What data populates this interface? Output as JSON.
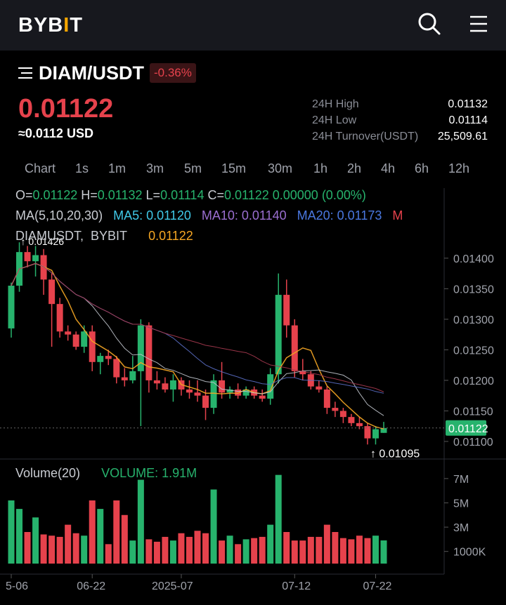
{
  "header": {
    "logo_main": "BYB",
    "logo_i": "I",
    "logo_t": "T",
    "search_icon": "search-icon",
    "menu_icon": "hamburger-menu-icon"
  },
  "market": {
    "pair": "DIAM/USDT",
    "change": "-0.36%",
    "price": "0.01122",
    "price_usd": "≈0.0112 USD"
  },
  "stats": [
    {
      "label": "24H High",
      "value": "0.01132"
    },
    {
      "label": "24H Low",
      "value": "0.01114"
    },
    {
      "label": "24H Turnover(USDT)",
      "value": "25,509.61"
    }
  ],
  "timeframes": [
    "Chart",
    "1s",
    "1m",
    "3m",
    "5m",
    "15m",
    "30m",
    "1h",
    "2h",
    "4h",
    "6h",
    "12h"
  ],
  "ohlc": {
    "o_label": "O=",
    "o": "0.01122",
    "h_label": "H=",
    "h": "0.01132",
    "l_label": "L=",
    "l": "0.01114",
    "c_label": "C=",
    "c": "0.01122",
    "chg": "0.00000 (0.00%)"
  },
  "ma": {
    "title": "MA(5,10,20,30)",
    "ma5": "MA5: 0.01120",
    "ma10": "MA10: 0.01140",
    "ma20": "MA20: 0.01173",
    "ma30": "M"
  },
  "symbol": {
    "name": "DIAMUSDT",
    "exchange": "BYBIT",
    "last": "0.01122"
  },
  "volume": {
    "title": "Volume(20)",
    "value": "VOLUME: 1.91M"
  },
  "colors": {
    "up": "#27b36d",
    "down": "#e6424c",
    "ma5": "#f5a623",
    "ma10": "#c0c4cc",
    "ma20": "#5b6fc7",
    "ma30": "#a83a50"
  },
  "chart_data": {
    "type": "candlestick",
    "price_axis": {
      "ticks": [
        0.014,
        0.0135,
        0.013,
        0.0125,
        0.012,
        0.0115,
        0.011
      ],
      "tick_labels": [
        "0.01400",
        "0.01350",
        "0.01300",
        "0.01250",
        "0.01200",
        "0.01150",
        "0.01100"
      ]
    },
    "volume_axis": {
      "tick_labels": [
        "7M",
        "5M",
        "3M",
        "1000K"
      ],
      "ticks": [
        7,
        5,
        3,
        1
      ]
    },
    "x_labels": [
      "5-06",
      "06-22",
      "2025-07",
      "07-12",
      "07-22"
    ],
    "max_label": "0.01426",
    "min_label": "0.01095",
    "current_price_label": "0.01122",
    "candles": [
      {
        "o": 0.01285,
        "h": 0.0136,
        "l": 0.0127,
        "c": 0.01355,
        "v": 5.2
      },
      {
        "o": 0.01355,
        "h": 0.01426,
        "l": 0.01345,
        "c": 0.0141,
        "v": 4.5
      },
      {
        "o": 0.0141,
        "h": 0.0142,
        "l": 0.01385,
        "c": 0.01395,
        "v": 2.6
      },
      {
        "o": 0.01395,
        "h": 0.0142,
        "l": 0.0137,
        "c": 0.01405,
        "v": 3.8
      },
      {
        "o": 0.01405,
        "h": 0.01415,
        "l": 0.0134,
        "c": 0.01365,
        "v": 2.4
      },
      {
        "o": 0.01365,
        "h": 0.01375,
        "l": 0.01255,
        "c": 0.01325,
        "v": 2.3
      },
      {
        "o": 0.01325,
        "h": 0.01335,
        "l": 0.0127,
        "c": 0.0128,
        "v": 2.2
      },
      {
        "o": 0.0128,
        "h": 0.0129,
        "l": 0.01265,
        "c": 0.01275,
        "v": 3.2
      },
      {
        "o": 0.01275,
        "h": 0.0128,
        "l": 0.0125,
        "c": 0.01255,
        "v": 2.5
      },
      {
        "o": 0.01255,
        "h": 0.0129,
        "l": 0.01245,
        "c": 0.0128,
        "v": 2.3
      },
      {
        "o": 0.0128,
        "h": 0.0129,
        "l": 0.01215,
        "c": 0.0123,
        "v": 5.2
      },
      {
        "o": 0.0123,
        "h": 0.01245,
        "l": 0.0121,
        "c": 0.0124,
        "v": 4.5
      },
      {
        "o": 0.0124,
        "h": 0.0125,
        "l": 0.01225,
        "c": 0.01235,
        "v": 1.6
      },
      {
        "o": 0.01235,
        "h": 0.0124,
        "l": 0.01195,
        "c": 0.01205,
        "v": 5.2
      },
      {
        "o": 0.01205,
        "h": 0.0122,
        "l": 0.0119,
        "c": 0.012,
        "v": 4.0
      },
      {
        "o": 0.012,
        "h": 0.0124,
        "l": 0.01195,
        "c": 0.01215,
        "v": 1.9
      },
      {
        "o": 0.01215,
        "h": 0.013,
        "l": 0.01125,
        "c": 0.0129,
        "v": 6.9
      },
      {
        "o": 0.0129,
        "h": 0.01295,
        "l": 0.0118,
        "c": 0.012,
        "v": 2.0
      },
      {
        "o": 0.012,
        "h": 0.01215,
        "l": 0.01185,
        "c": 0.01195,
        "v": 1.8
      },
      {
        "o": 0.01195,
        "h": 0.01205,
        "l": 0.0118,
        "c": 0.01185,
        "v": 2.2
      },
      {
        "o": 0.01185,
        "h": 0.0121,
        "l": 0.01165,
        "c": 0.012,
        "v": 1.9
      },
      {
        "o": 0.012,
        "h": 0.01205,
        "l": 0.01175,
        "c": 0.01185,
        "v": 2.5
      },
      {
        "o": 0.01185,
        "h": 0.012,
        "l": 0.0117,
        "c": 0.0118,
        "v": 2.2
      },
      {
        "o": 0.0118,
        "h": 0.012,
        "l": 0.01165,
        "c": 0.01175,
        "v": 2.7
      },
      {
        "o": 0.01175,
        "h": 0.01185,
        "l": 0.01135,
        "c": 0.01155,
        "v": 2.5
      },
      {
        "o": 0.01155,
        "h": 0.0121,
        "l": 0.01145,
        "c": 0.012,
        "v": 6.1
      },
      {
        "o": 0.012,
        "h": 0.0123,
        "l": 0.0117,
        "c": 0.0118,
        "v": 1.9
      },
      {
        "o": 0.0118,
        "h": 0.0119,
        "l": 0.0117,
        "c": 0.01185,
        "v": 2.3
      },
      {
        "o": 0.01185,
        "h": 0.01195,
        "l": 0.0117,
        "c": 0.01175,
        "v": 1.6
      },
      {
        "o": 0.01175,
        "h": 0.0119,
        "l": 0.0117,
        "c": 0.01185,
        "v": 2.0
      },
      {
        "o": 0.01185,
        "h": 0.0119,
        "l": 0.0117,
        "c": 0.01175,
        "v": 2.1
      },
      {
        "o": 0.01175,
        "h": 0.01185,
        "l": 0.01165,
        "c": 0.0117,
        "v": 2.2
      },
      {
        "o": 0.0117,
        "h": 0.0122,
        "l": 0.0116,
        "c": 0.0121,
        "v": 3.2
      },
      {
        "o": 0.0121,
        "h": 0.01375,
        "l": 0.01195,
        "c": 0.0134,
        "v": 7.3
      },
      {
        "o": 0.0134,
        "h": 0.01365,
        "l": 0.0127,
        "c": 0.0129,
        "v": 2.6
      },
      {
        "o": 0.0129,
        "h": 0.013,
        "l": 0.01205,
        "c": 0.01215,
        "v": 1.9
      },
      {
        "o": 0.01215,
        "h": 0.01235,
        "l": 0.012,
        "c": 0.0121,
        "v": 1.9
      },
      {
        "o": 0.0121,
        "h": 0.01215,
        "l": 0.01185,
        "c": 0.0119,
        "v": 2.2
      },
      {
        "o": 0.0119,
        "h": 0.012,
        "l": 0.0118,
        "c": 0.01185,
        "v": 2.2
      },
      {
        "o": 0.01185,
        "h": 0.0119,
        "l": 0.01145,
        "c": 0.01155,
        "v": 3.2
      },
      {
        "o": 0.01155,
        "h": 0.01165,
        "l": 0.0114,
        "c": 0.0115,
        "v": 2.6
      },
      {
        "o": 0.0115,
        "h": 0.01155,
        "l": 0.0113,
        "c": 0.0114,
        "v": 2.1
      },
      {
        "o": 0.0114,
        "h": 0.01145,
        "l": 0.01125,
        "c": 0.0113,
        "v": 2.0
      },
      {
        "o": 0.0113,
        "h": 0.0114,
        "l": 0.0112,
        "c": 0.01125,
        "v": 2.3
      },
      {
        "o": 0.01125,
        "h": 0.0113,
        "l": 0.01095,
        "c": 0.01105,
        "v": 2.1
      },
      {
        "o": 0.01105,
        "h": 0.01125,
        "l": 0.01095,
        "c": 0.0112,
        "v": 2.3
      },
      {
        "o": 0.01114,
        "h": 0.01132,
        "l": 0.01114,
        "c": 0.01122,
        "v": 1.91
      }
    ]
  }
}
